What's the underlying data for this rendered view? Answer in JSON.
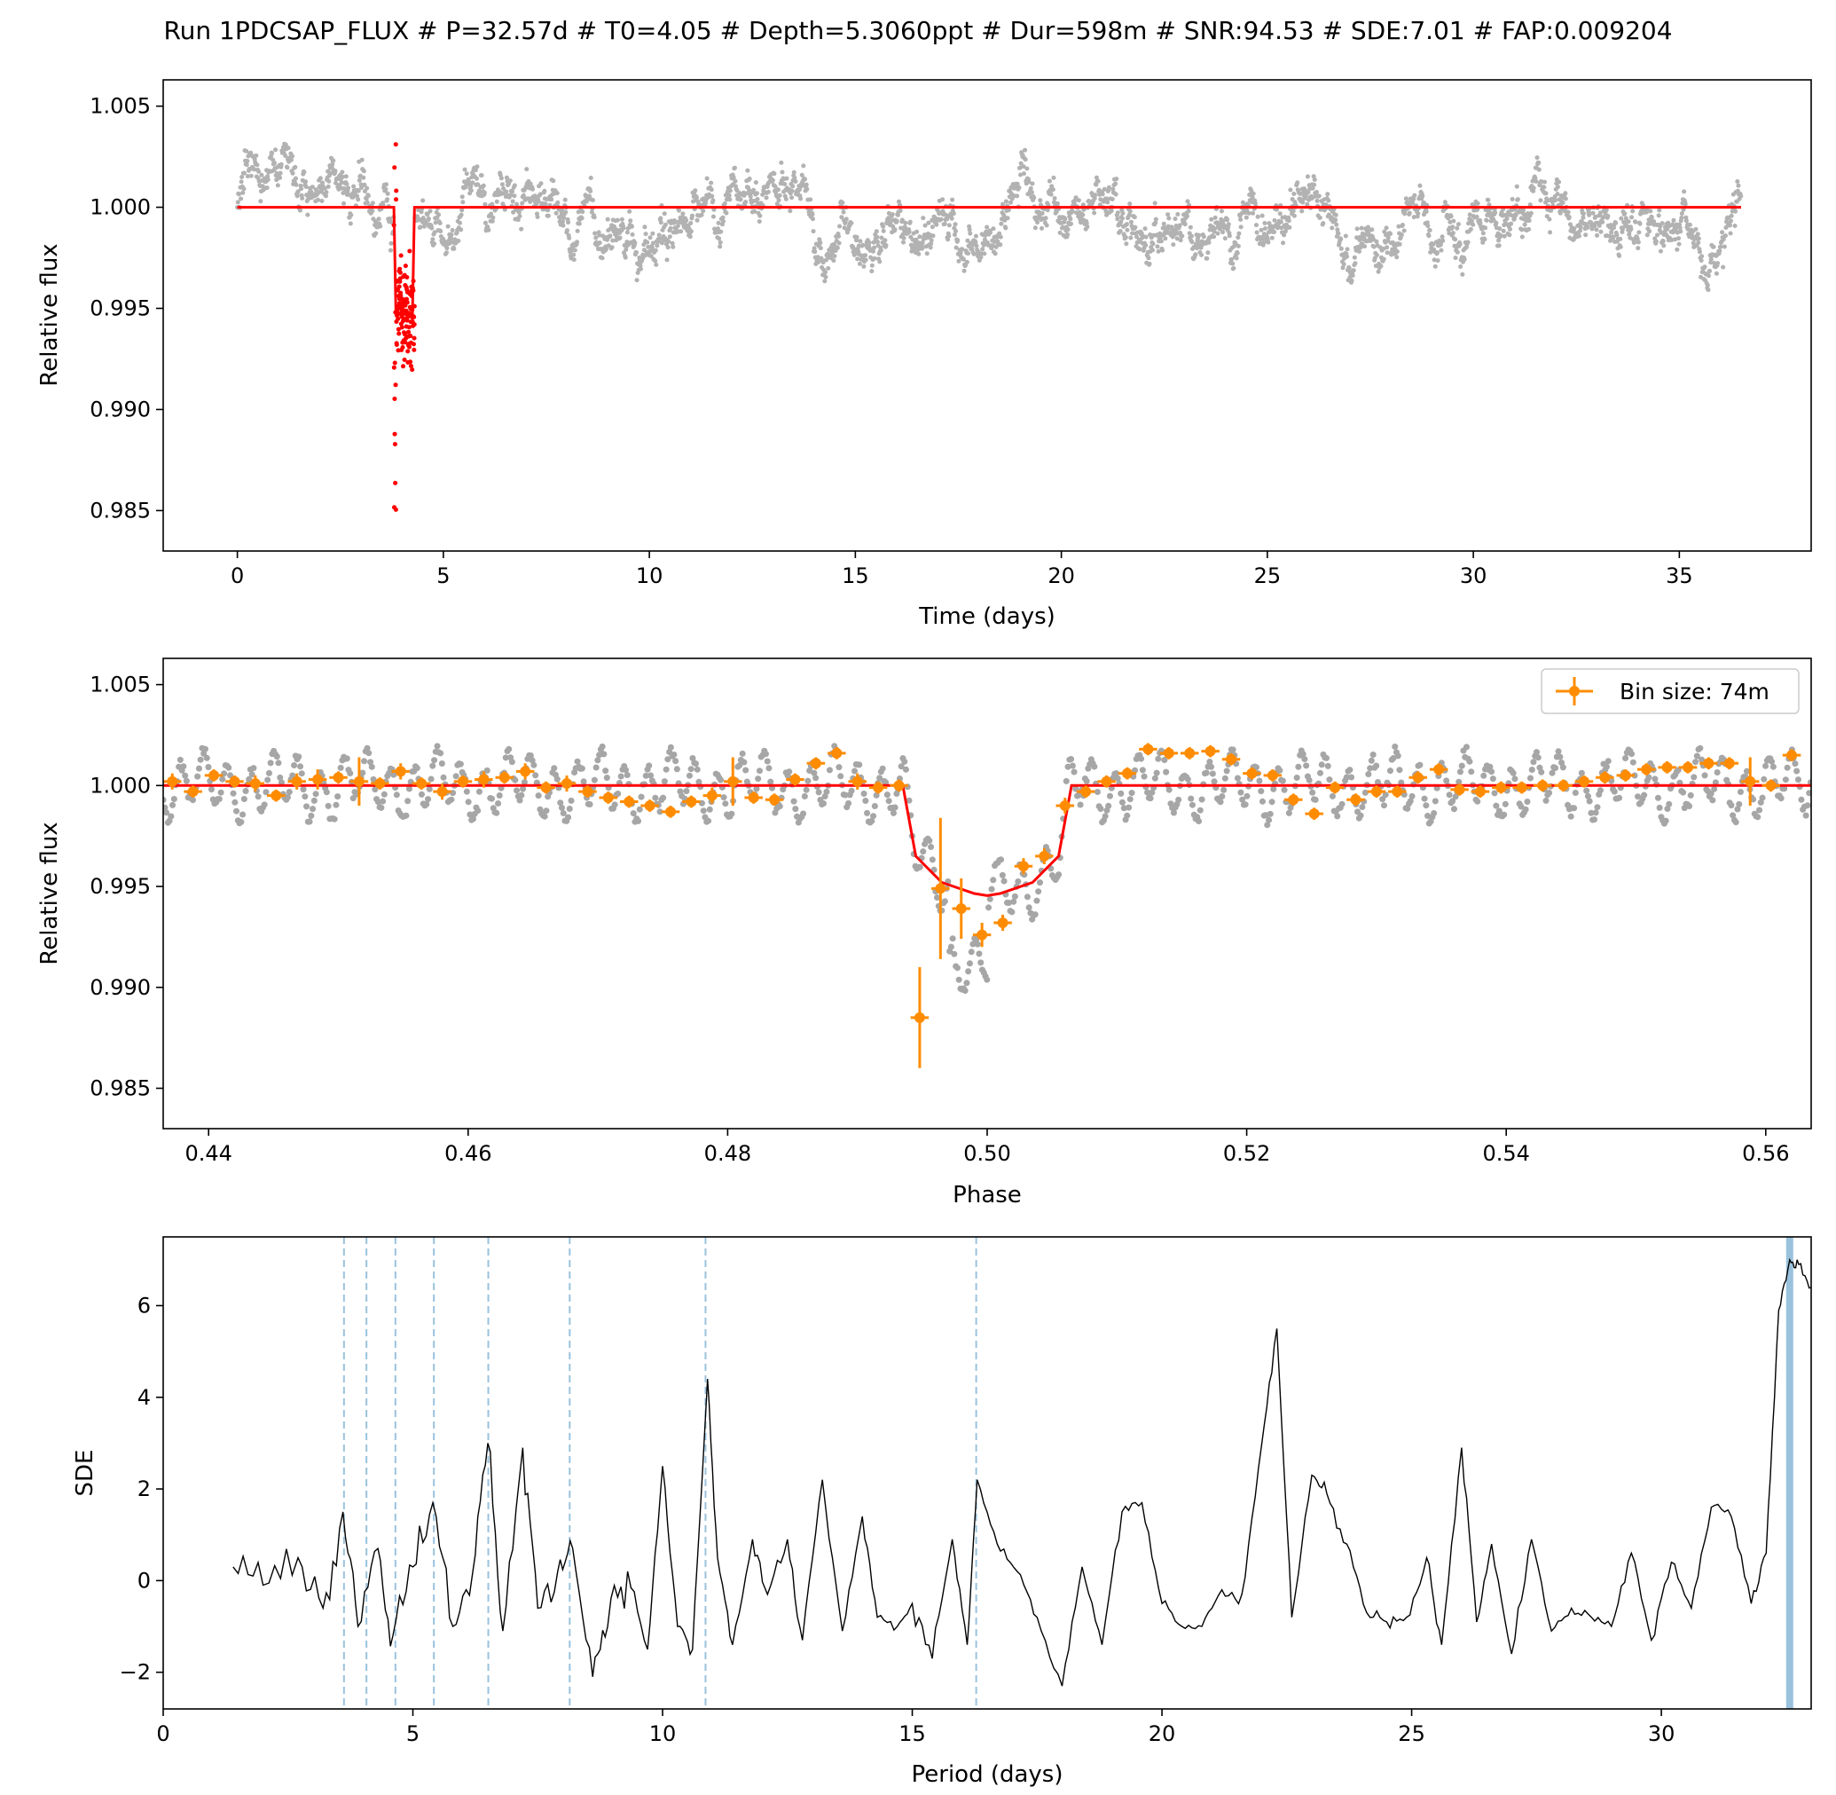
{
  "figure": {
    "title": "Run 1PDCSAP_FLUX # P=32.57d # T0=4.05 # Depth=5.3060ppt # Dur=598m # SNR:94.53 # SDE:7.01 # FAP:0.009204"
  },
  "chart_data": [
    {
      "type": "scatter",
      "panel": "light curve",
      "xlabel": "Time (days)",
      "ylabel": "Relative flux",
      "xlim": [
        -1.8,
        38.2
      ],
      "ylim": [
        0.983,
        1.0063
      ],
      "x_ticks": [
        0,
        5,
        10,
        15,
        20,
        25,
        30,
        35
      ],
      "x_tick_labels": [
        "0",
        "5",
        "10",
        "15",
        "20",
        "25",
        "30",
        "35"
      ],
      "y_ticks": [
        1.005,
        1.0,
        0.995,
        0.99,
        0.985
      ],
      "y_tick_labels": [
        "1.005",
        "1.000",
        "0.995",
        "0.990",
        "0.985"
      ],
      "series": [
        {
          "role": "data",
          "color": "#000000",
          "x_range": [
            0.0,
            36.5
          ],
          "baseline": 1.0,
          "scatter": 0.0018
        },
        {
          "role": "in-transit points",
          "color": "#ff0000",
          "x_range": [
            3.8,
            4.3
          ],
          "min_y": 0.984,
          "max_y": 1.0035
        },
        {
          "role": "transit model",
          "color": "#ff0000",
          "x": [
            0.0,
            3.8,
            3.85,
            4.25,
            4.3,
            36.5
          ],
          "y": [
            1.0,
            1.0,
            0.9947,
            0.9947,
            1.0,
            1.0
          ]
        }
      ],
      "grid": false
    },
    {
      "type": "scatter",
      "panel": "phase folded",
      "xlabel": "Phase",
      "ylabel": "Relative flux",
      "xlim": [
        0.4365,
        0.5635
      ],
      "ylim": [
        0.983,
        1.0063
      ],
      "x_ticks": [
        0.44,
        0.46,
        0.48,
        0.5,
        0.52,
        0.54,
        0.56
      ],
      "x_tick_labels": [
        "0.44",
        "0.46",
        "0.48",
        "0.50",
        "0.52",
        "0.54",
        "0.56"
      ],
      "y_ticks": [
        1.005,
        1.0,
        0.995,
        0.99,
        0.985
      ],
      "y_tick_labels": [
        "1.005",
        "1.000",
        "0.995",
        "0.990",
        "0.985"
      ],
      "legend": {
        "label": "Bin size: 74m",
        "placement": "upper right"
      },
      "model": {
        "color": "#ff0000",
        "x": [
          0.4365,
          0.4935,
          0.4945,
          0.4965,
          0.499,
          0.5,
          0.501,
          0.5035,
          0.5055,
          0.5065,
          0.5635
        ],
        "y": [
          1.0,
          1.0,
          0.9965,
          0.9952,
          0.99465,
          0.99455,
          0.99465,
          0.9952,
          0.9965,
          1.0,
          1.0
        ]
      },
      "binned": {
        "color": "#ff8c00",
        "x": [
          0.4372,
          0.4388,
          0.4404,
          0.442,
          0.4436,
          0.4452,
          0.4468,
          0.4484,
          0.45,
          0.4516,
          0.4532,
          0.4548,
          0.4564,
          0.458,
          0.4596,
          0.4612,
          0.4628,
          0.4644,
          0.466,
          0.4676,
          0.4692,
          0.4708,
          0.4724,
          0.474,
          0.4756,
          0.4772,
          0.4788,
          0.4804,
          0.482,
          0.4836,
          0.4852,
          0.4868,
          0.4884,
          0.49,
          0.4916,
          0.4932,
          0.4948,
          0.4964,
          0.498,
          0.4996,
          0.5012,
          0.5028,
          0.5044,
          0.506,
          0.5076,
          0.5092,
          0.5108,
          0.5124,
          0.514,
          0.5156,
          0.5172,
          0.5188,
          0.5204,
          0.522,
          0.5236,
          0.5252,
          0.5268,
          0.5284,
          0.53,
          0.5316,
          0.5332,
          0.5348,
          0.5364,
          0.538,
          0.5396,
          0.5412,
          0.5428,
          0.5444,
          0.546,
          0.5476,
          0.5492,
          0.5508,
          0.5524,
          0.554,
          0.5556,
          0.5572,
          0.5588,
          0.5604,
          0.562
        ],
        "y": [
          1.0002,
          0.9997,
          1.0005,
          1.0002,
          1.0001,
          0.9995,
          1.0002,
          1.0003,
          1.0004,
          1.0002,
          1.0001,
          1.0007,
          1.0001,
          0.9997,
          1.0002,
          1.0003,
          1.0004,
          1.0007,
          0.9999,
          1.0001,
          0.9997,
          0.9994,
          0.9992,
          0.999,
          0.9987,
          0.9992,
          0.9995,
          1.0002,
          0.9994,
          0.9993,
          1.0003,
          1.0011,
          1.0016,
          1.0002,
          0.9999,
          1.0,
          0.9885,
          0.9949,
          0.9939,
          0.9926,
          0.9932,
          0.996,
          0.9965,
          0.999,
          0.9997,
          1.0002,
          1.0006,
          1.0018,
          1.0016,
          1.0016,
          1.0017,
          1.0013,
          1.0006,
          1.0005,
          0.9993,
          0.9986,
          0.9999,
          0.9993,
          0.9997,
          0.9997,
          1.0004,
          1.0008,
          0.9998,
          0.9997,
          0.9999,
          0.9999,
          1.0,
          1.0,
          1.0002,
          1.0004,
          1.0005,
          1.0008,
          1.0009,
          1.0009,
          1.0011,
          1.0011,
          1.0002,
          1.0,
          1.0015
        ],
        "yerr": [
          0.0004,
          0.0003,
          0.0003,
          0.0003,
          0.0004,
          0.0003,
          0.0004,
          0.0005,
          0.0003,
          0.0012,
          0.0003,
          0.0004,
          0.0003,
          0.0004,
          0.0003,
          0.0004,
          0.0003,
          0.0004,
          0.0003,
          0.0004,
          0.0003,
          0.0003,
          0.0003,
          0.0003,
          0.0003,
          0.0003,
          0.0004,
          0.0012,
          0.0003,
          0.0003,
          0.0003,
          0.0003,
          0.0003,
          0.0004,
          0.0003,
          0.0003,
          0.0025,
          0.0035,
          0.0015,
          0.0006,
          0.0004,
          0.0004,
          0.0004,
          0.0004,
          0.0003,
          0.0003,
          0.0003,
          0.0003,
          0.0003,
          0.0003,
          0.0003,
          0.0003,
          0.0003,
          0.0003,
          0.0003,
          0.0003,
          0.0003,
          0.0003,
          0.0003,
          0.0003,
          0.0003,
          0.0003,
          0.0003,
          0.0003,
          0.0003,
          0.0003,
          0.0003,
          0.0003,
          0.0003,
          0.0003,
          0.0003,
          0.0003,
          0.0003,
          0.0003,
          0.0003,
          0.0003,
          0.0012,
          0.0003,
          0.0003
        ]
      },
      "grid": false
    },
    {
      "type": "line",
      "panel": "periodogram",
      "xlabel": "Period (days)",
      "ylabel": "SDE",
      "xlim": [
        0,
        33.0
      ],
      "ylim": [
        -2.8,
        7.5
      ],
      "x_ticks": [
        0,
        5,
        10,
        15,
        20,
        25,
        30
      ],
      "x_tick_labels": [
        "0",
        "5",
        "10",
        "15",
        "20",
        "25",
        "30"
      ],
      "y_ticks": [
        -2,
        0,
        2,
        4,
        6
      ],
      "y_tick_labels": [
        "−2",
        "0",
        "2",
        "4",
        "6"
      ],
      "best_period": 32.57,
      "harmonic_lines": [
        3.62,
        4.07,
        4.65,
        5.42,
        6.51,
        8.14,
        10.86,
        16.28
      ],
      "x": [
        1.4,
        2.0,
        2.7,
        3.2,
        3.6,
        3.9,
        4.3,
        4.6,
        5.0,
        5.4,
        5.8,
        6.2,
        6.5,
        6.8,
        7.2,
        7.5,
        7.9,
        8.2,
        8.6,
        8.9,
        9.3,
        9.7,
        10.0,
        10.3,
        10.6,
        10.9,
        11.1,
        11.4,
        11.8,
        12.1,
        12.5,
        12.8,
        13.2,
        13.6,
        14.0,
        14.3,
        14.7,
        15.0,
        15.4,
        15.8,
        16.1,
        16.3,
        16.7,
        17.1,
        17.5,
        18.0,
        18.4,
        18.8,
        19.2,
        19.6,
        20.0,
        20.4,
        20.8,
        21.2,
        21.6,
        22.0,
        22.3,
        22.6,
        23.0,
        23.3,
        23.7,
        24.1,
        24.5,
        24.9,
        25.3,
        25.6,
        26.0,
        26.3,
        26.6,
        27.0,
        27.4,
        27.8,
        28.2,
        28.6,
        29.0,
        29.4,
        29.8,
        30.2,
        30.6,
        31.0,
        31.4,
        31.8,
        32.1,
        32.35,
        32.57,
        32.75,
        33.0
      ],
      "y": [
        0.3,
        -0.1,
        0.5,
        -0.6,
        1.5,
        -1.0,
        0.7,
        -1.2,
        0.3,
        1.7,
        -1.0,
        0.2,
        3.0,
        -1.1,
        2.9,
        -0.6,
        0.2,
        0.7,
        -2.1,
        -1.0,
        0.2,
        -1.5,
        2.5,
        -1.0,
        -1.5,
        4.4,
        0.5,
        -1.4,
        0.9,
        -0.3,
        0.9,
        -1.3,
        2.2,
        -1.1,
        1.4,
        -0.8,
        -1.0,
        -0.5,
        -1.7,
        0.9,
        -1.4,
        2.2,
        0.8,
        0.2,
        -0.8,
        -2.3,
        0.3,
        -1.4,
        1.5,
        1.7,
        -0.5,
        -1.0,
        -1.0,
        -0.2,
        -0.3,
        3.0,
        5.5,
        -0.8,
        2.3,
        1.9,
        0.8,
        -0.7,
        -0.9,
        -0.8,
        0.5,
        -1.4,
        2.9,
        -0.9,
        0.8,
        -1.6,
        0.9,
        -1.1,
        -0.6,
        -0.8,
        -1.0,
        0.6,
        -1.3,
        0.4,
        -0.6,
        1.6,
        1.4,
        -0.5,
        0.6,
        5.9,
        7.0,
        6.9,
        6.4
      ],
      "color": "#000000",
      "grid": false
    }
  ]
}
